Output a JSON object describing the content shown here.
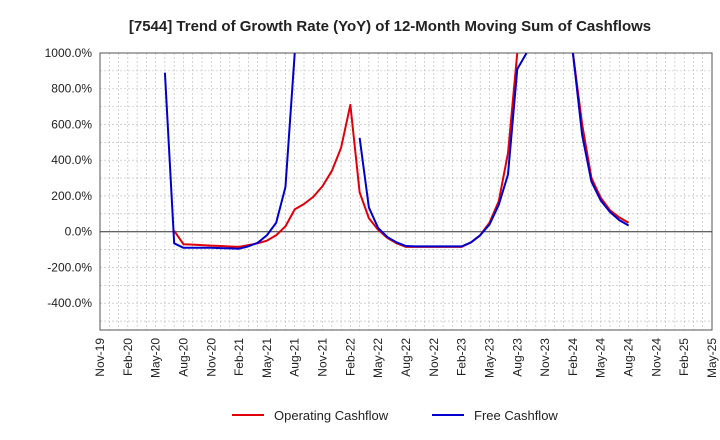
{
  "chart_data": {
    "type": "line",
    "title": "[7544]  Trend of Growth Rate (YoY) of 12-Month Moving Sum of Cashflows",
    "xlabel": "",
    "ylabel": "",
    "ylim": [
      -550,
      1000
    ],
    "y_ticks": [
      {
        "value": 1000,
        "label": "1000.0%"
      },
      {
        "value": 800,
        "label": "800.0%"
      },
      {
        "value": 600,
        "label": "600.0%"
      },
      {
        "value": 400,
        "label": "400.0%"
      },
      {
        "value": 200,
        "label": "200.0%"
      },
      {
        "value": 0,
        "label": "0.0%"
      },
      {
        "value": -200,
        "label": "-200.0%"
      },
      {
        "value": -400,
        "label": "-400.0%"
      }
    ],
    "x_ticks": [
      "Nov-19",
      "Feb-20",
      "May-20",
      "Aug-20",
      "Nov-20",
      "Feb-21",
      "May-21",
      "Aug-21",
      "Nov-21",
      "Feb-22",
      "May-22",
      "Aug-22",
      "Nov-22",
      "Feb-23",
      "May-23",
      "Aug-23",
      "Nov-23",
      "Feb-24",
      "May-24",
      "Aug-24",
      "Nov-24",
      "Feb-25",
      "May-25"
    ],
    "x_start": "2019-11",
    "grid": true,
    "legend_position": "bottom",
    "series": [
      {
        "name": "Operating Cashflow",
        "color": "#e0000a",
        "points": [
          [
            "2020-07",
            5
          ],
          [
            "2020-08",
            -70
          ],
          [
            "2020-09",
            -72
          ],
          [
            "2020-10",
            -75
          ],
          [
            "2020-11",
            -78
          ],
          [
            "2020-12",
            -80
          ],
          [
            "2021-01",
            -83
          ],
          [
            "2021-02",
            -85
          ],
          [
            "2021-03",
            -75
          ],
          [
            "2021-04",
            -65
          ],
          [
            "2021-05",
            -50
          ],
          [
            "2021-06",
            -20
          ],
          [
            "2021-07",
            30
          ],
          [
            "2021-08",
            125
          ],
          [
            "2021-09",
            155
          ],
          [
            "2021-10",
            195
          ],
          [
            "2021-11",
            255
          ],
          [
            "2021-12",
            340
          ],
          [
            "2022-01",
            470
          ],
          [
            "2022-02",
            710
          ],
          [
            "2022-03",
            220
          ],
          [
            "2022-04",
            75
          ],
          [
            "2022-05",
            10
          ],
          [
            "2022-06",
            -35
          ],
          [
            "2022-07",
            -65
          ],
          [
            "2022-08",
            -85
          ],
          [
            "2022-09",
            -85
          ],
          [
            "2022-10",
            -85
          ],
          [
            "2022-11",
            -85
          ],
          [
            "2022-12",
            -85
          ],
          [
            "2023-01",
            -85
          ],
          [
            "2023-02",
            -85
          ],
          [
            "2023-03",
            -60
          ],
          [
            "2023-04",
            -20
          ],
          [
            "2023-05",
            50
          ],
          [
            "2023-06",
            170
          ],
          [
            "2023-07",
            440
          ],
          [
            "2023-08",
            1000
          ]
        ],
        "segments_after_gap": [
          [
            [
              "2024-02",
              1000
            ],
            [
              "2024-03",
              600
            ],
            [
              "2024-04",
              300
            ],
            [
              "2024-05",
              190
            ],
            [
              "2024-06",
              120
            ],
            [
              "2024-07",
              80
            ],
            [
              "2024-08",
              50
            ]
          ]
        ]
      },
      {
        "name": "Free Cashflow",
        "color": "#0000cc",
        "segments": [
          [
            [
              "2020-06",
              890
            ],
            [
              "2020-07",
              -65
            ],
            [
              "2020-08",
              -90
            ],
            [
              "2020-09",
              -90
            ],
            [
              "2020-10",
              -90
            ],
            [
              "2020-11",
              -90
            ],
            [
              "2020-12",
              -92
            ],
            [
              "2021-01",
              -93
            ],
            [
              "2021-02",
              -95
            ],
            [
              "2021-03",
              -82
            ],
            [
              "2021-04",
              -62
            ],
            [
              "2021-05",
              -20
            ],
            [
              "2021-06",
              50
            ],
            [
              "2021-07",
              250
            ],
            [
              "2021-08",
              1000
            ]
          ],
          [
            [
              "2022-03",
              525
            ],
            [
              "2022-04",
              135
            ],
            [
              "2022-05",
              20
            ],
            [
              "2022-06",
              -30
            ],
            [
              "2022-07",
              -60
            ],
            [
              "2022-08",
              -80
            ],
            [
              "2022-09",
              -82
            ],
            [
              "2022-10",
              -82
            ],
            [
              "2022-11",
              -82
            ],
            [
              "2022-12",
              -82
            ],
            [
              "2023-01",
              -82
            ],
            [
              "2023-02",
              -82
            ],
            [
              "2023-03",
              -60
            ],
            [
              "2023-04",
              -20
            ],
            [
              "2023-05",
              40
            ],
            [
              "2023-06",
              150
            ],
            [
              "2023-07",
              320
            ],
            [
              "2023-08",
              910
            ],
            [
              "2023-09",
              1000
            ]
          ],
          [
            [
              "2024-02",
              1000
            ],
            [
              "2024-03",
              540
            ],
            [
              "2024-04",
              280
            ],
            [
              "2024-05",
              175
            ],
            [
              "2024-06",
              110
            ],
            [
              "2024-07",
              65
            ],
            [
              "2024-08",
              35
            ]
          ]
        ]
      }
    ]
  }
}
